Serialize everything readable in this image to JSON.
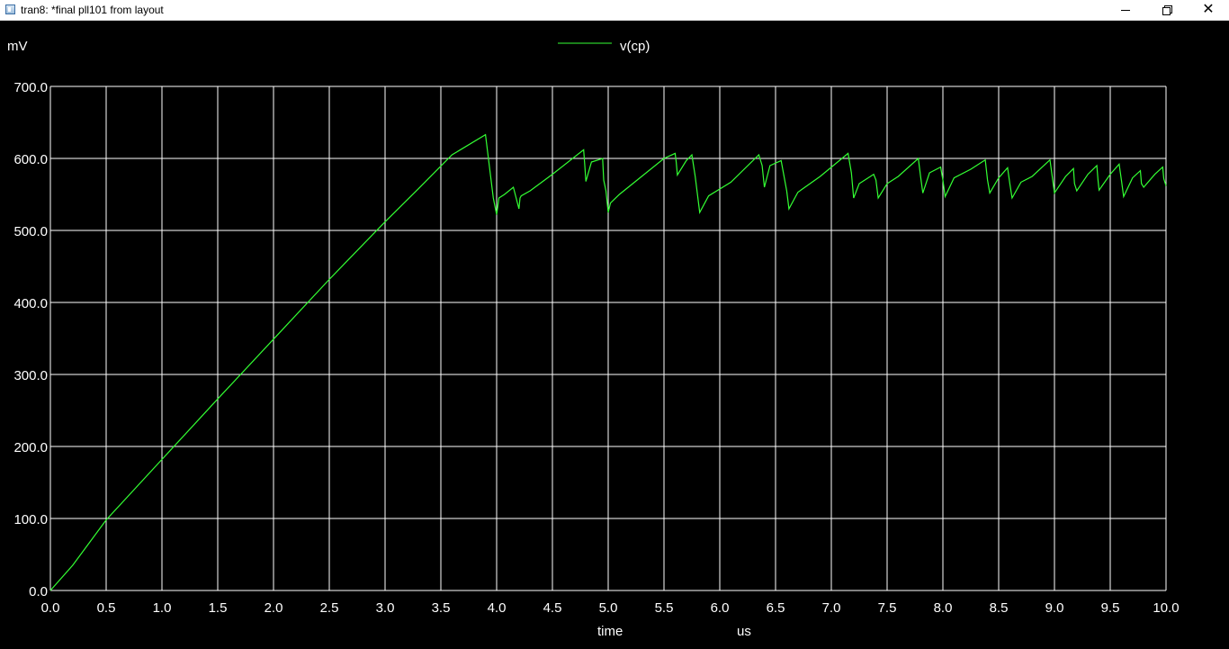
{
  "window": {
    "title": "tran8: *final pll101 from layout",
    "controls": {
      "minimize": "minimize",
      "maximize": "restore",
      "close": "close"
    }
  },
  "colors": {
    "background": "#000000",
    "grid": "#ffffff",
    "series": "#33ff33",
    "text": "#ffffff"
  },
  "chart_data": {
    "type": "line",
    "title": "",
    "xlabel": "time",
    "xunit": "us",
    "ylabel": "",
    "yunit": "mV",
    "xlim": [
      0.0,
      10.0
    ],
    "ylim": [
      0.0,
      700.0
    ],
    "grid": true,
    "legend": "top-center",
    "xticks": [
      "0.0",
      "0.5",
      "1.0",
      "1.5",
      "2.0",
      "2.5",
      "3.0",
      "3.5",
      "4.0",
      "4.5",
      "5.0",
      "5.5",
      "6.0",
      "6.5",
      "7.0",
      "7.5",
      "8.0",
      "8.5",
      "9.0",
      "9.5",
      "10.0"
    ],
    "yticks": [
      "0.0",
      "100.0",
      "200.0",
      "300.0",
      "400.0",
      "500.0",
      "600.0",
      "700.0"
    ],
    "series": [
      {
        "name": "v(cp)",
        "x": [
          0.0,
          0.2,
          0.5,
          1.0,
          1.5,
          2.0,
          2.5,
          3.0,
          3.3,
          3.6,
          3.9,
          3.97,
          4.0,
          4.02,
          4.07,
          4.15,
          4.2,
          4.21,
          4.22,
          4.3,
          4.5,
          4.78,
          4.79,
          4.8,
          4.85,
          4.95,
          4.96,
          4.98,
          5.0,
          5.02,
          5.1,
          5.3,
          5.5,
          5.6,
          5.61,
          5.62,
          5.7,
          5.75,
          5.78,
          5.8,
          5.82,
          5.9,
          6.1,
          6.35,
          6.38,
          6.4,
          6.45,
          6.55,
          6.6,
          6.62,
          6.7,
          6.9,
          7.15,
          7.18,
          7.2,
          7.25,
          7.38,
          7.4,
          7.42,
          7.5,
          7.6,
          7.78,
          7.8,
          7.82,
          7.88,
          7.98,
          8.0,
          8.02,
          8.1,
          8.25,
          8.38,
          8.4,
          8.42,
          8.5,
          8.58,
          8.6,
          8.62,
          8.7,
          8.8,
          8.96,
          8.98,
          9.0,
          9.1,
          9.17,
          9.18,
          9.2,
          9.3,
          9.38,
          9.39,
          9.4,
          9.5,
          9.58,
          9.6,
          9.62,
          9.7,
          9.77,
          9.78,
          9.8,
          9.9,
          9.97,
          9.98,
          10.0
        ],
        "y": [
          0,
          35,
          98,
          182,
          266,
          349,
          432,
          512,
          558,
          605,
          633,
          545,
          522,
          545,
          550,
          560,
          530,
          545,
          548,
          555,
          578,
          612,
          590,
          568,
          595,
          600,
          570,
          555,
          525,
          538,
          550,
          575,
          600,
          607,
          595,
          577,
          597,
          605,
          575,
          550,
          525,
          548,
          567,
          605,
          590,
          560,
          590,
          597,
          555,
          530,
          553,
          575,
          607,
          580,
          545,
          565,
          578,
          570,
          545,
          565,
          575,
          600,
          575,
          552,
          580,
          588,
          570,
          547,
          573,
          585,
          598,
          570,
          552,
          573,
          587,
          565,
          545,
          567,
          575,
          598,
          575,
          552,
          575,
          586,
          565,
          555,
          578,
          590,
          570,
          556,
          578,
          592,
          570,
          547,
          573,
          583,
          565,
          560,
          578,
          588,
          572,
          562
        ]
      }
    ]
  }
}
